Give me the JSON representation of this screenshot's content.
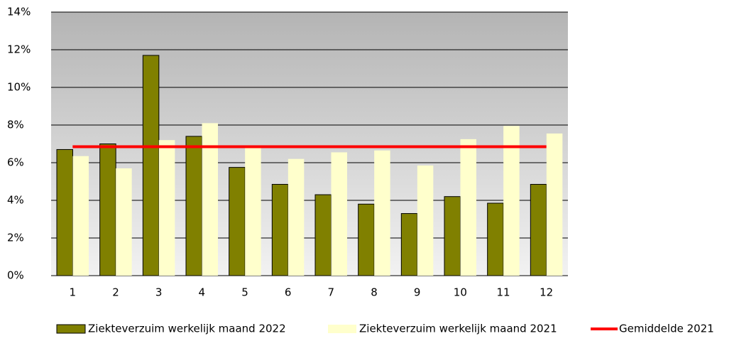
{
  "chart_data": {
    "type": "bar",
    "categories": [
      "1",
      "2",
      "3",
      "4",
      "5",
      "6",
      "7",
      "8",
      "9",
      "10",
      "11",
      "12"
    ],
    "series": [
      {
        "name": "Ziekteverzuim werkelijk maand 2022",
        "color": "#808000",
        "type": "bar",
        "values": [
          6.7,
          7.0,
          11.7,
          7.4,
          5.75,
          4.85,
          4.3,
          3.8,
          3.3,
          4.2,
          3.85,
          4.85
        ]
      },
      {
        "name": "Ziekteverzuim werkelijk maand 2021",
        "color": "#ffffcc",
        "type": "bar",
        "values": [
          6.35,
          5.7,
          7.2,
          8.1,
          6.8,
          6.2,
          6.55,
          6.65,
          5.85,
          7.25,
          7.95,
          7.55
        ]
      },
      {
        "name": "Gemiddelde 2021",
        "color": "#ff0000",
        "type": "line",
        "values": [
          6.85,
          6.85,
          6.85,
          6.85,
          6.85,
          6.85,
          6.85,
          6.85,
          6.85,
          6.85,
          6.85,
          6.85
        ]
      }
    ],
    "ylim": [
      0,
      14
    ],
    "yticks": [
      {
        "value": 0,
        "label": "0%"
      },
      {
        "value": 2,
        "label": "2%"
      },
      {
        "value": 4,
        "label": "4%"
      },
      {
        "value": 6,
        "label": "6%"
      },
      {
        "value": 8,
        "label": "8%"
      },
      {
        "value": 10,
        "label": "10%"
      },
      {
        "value": 12,
        "label": "12%"
      },
      {
        "value": 14,
        "label": "14%"
      }
    ],
    "grid": true,
    "legend": "bottom"
  }
}
